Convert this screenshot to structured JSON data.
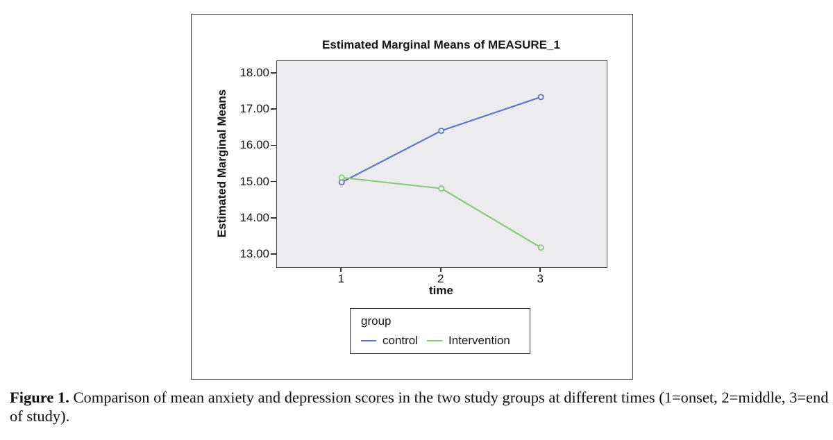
{
  "figure": {
    "caption_label": "Figure 1.",
    "caption_text": " Comparison of mean anxiety and depression scores in the two study groups at different times (1=onset, 2=middle, 3=end of study)."
  },
  "chart_data": {
    "type": "line",
    "title": "Estimated Marginal Means of MEASURE_1",
    "xlabel": "time",
    "ylabel": "Estimated Marginal Means",
    "x": [
      1,
      2,
      3
    ],
    "x_tick_labels": [
      "1",
      "2",
      "3"
    ],
    "y_tick_labels": [
      "18.00",
      "17.00",
      "16.00",
      "15.00",
      "14.00",
      "13.00"
    ],
    "y_tick_values": [
      18,
      17,
      16,
      15,
      14,
      13
    ],
    "xlim": [
      0.35,
      3.66
    ],
    "ylim": [
      12.66,
      18.34
    ],
    "grid": false,
    "plot_background": "#ececee",
    "marker": "open-circle",
    "legend": {
      "title": "group",
      "position": "below-chart"
    },
    "series": [
      {
        "name": "control",
        "values": [
          15.0,
          16.42,
          17.35
        ],
        "color": "#6673c4"
      },
      {
        "name": "Intervention",
        "values": [
          15.13,
          14.83,
          13.2
        ],
        "color": "#8bc87e"
      }
    ]
  }
}
